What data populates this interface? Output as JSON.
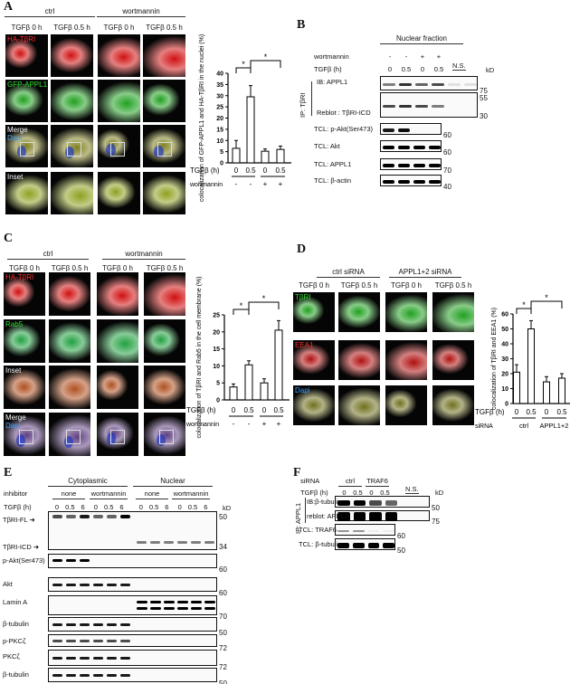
{
  "panels": {
    "A": "A",
    "B": "B",
    "C": "C",
    "D": "D",
    "E": "E",
    "F": "F"
  },
  "panelA": {
    "groups": [
      "ctrl",
      "wortmannin"
    ],
    "columns": [
      "TGFβ 0 h",
      "TGFβ 0.5 h",
      "TGFβ 0 h",
      "TGFβ 0.5 h"
    ],
    "rows": [
      {
        "labels": [
          "HA-TβRI"
        ],
        "label_colors": [
          "#ff3030"
        ],
        "tint": "#d01010"
      },
      {
        "labels": [
          "GFP-APPL1"
        ],
        "label_colors": [
          "#30e030"
        ],
        "tint": "#20a020"
      },
      {
        "labels": [
          "Merge",
          "Dapi"
        ],
        "label_colors": [
          "#ffffff",
          "#3aa0ff"
        ],
        "tint": "#808020"
      },
      {
        "labels": [
          "Inset"
        ],
        "label_colors": [
          "#ffffff"
        ],
        "tint": "#90a020"
      }
    ]
  },
  "panelB": {
    "header": "Nuclear fraction",
    "wortmannin_label": "wortmannin",
    "wortmannin": [
      "-",
      "-",
      "+",
      "+"
    ],
    "tgf_label": "TGFβ (h)",
    "tgf": [
      "0",
      "0.5",
      "0",
      "0.5"
    ],
    "ns": "N.S.",
    "kd": "kD",
    "ip": "IP: TβRI",
    "blots": [
      {
        "label": "IB: APPL1",
        "markers": [
          "75"
        ],
        "lanes": [
          0.5,
          0.8,
          0.6,
          0.7,
          0.1,
          0.1
        ]
      },
      {
        "label": "Reblot  : TβRI-ICD",
        "markers": [
          "55",
          "30"
        ],
        "lanes": [
          0.7,
          0.8,
          0.7,
          0.5,
          0,
          0
        ]
      },
      {
        "label": "TCL: p-Akt(Ser473)",
        "markers": [
          "60"
        ],
        "lanes": [
          0.9,
          0.95,
          0,
          0
        ]
      },
      {
        "label": "TCL: Akt",
        "markers": [
          "60"
        ],
        "lanes": [
          1,
          1,
          1,
          1
        ]
      },
      {
        "label": "TCL: APPL1",
        "markers": [
          "70"
        ],
        "lanes": [
          1,
          1,
          1,
          1
        ]
      },
      {
        "label": "TCL: β-actin",
        "markers": [
          "40"
        ],
        "lanes": [
          1,
          1,
          1,
          1
        ]
      }
    ]
  },
  "panelC": {
    "groups": [
      "ctrl",
      "wortmannin"
    ],
    "columns": [
      "TGFβ 0 h",
      "TGFβ 0.5 h",
      "TGFβ 0 h",
      "TGFβ 0.5 h"
    ],
    "rows": [
      {
        "labels": [
          "HA-TβRI"
        ],
        "label_colors": [
          "#ff3030"
        ],
        "tint": "#d01010"
      },
      {
        "labels": [
          "Rab5"
        ],
        "label_colors": [
          "#30e030"
        ],
        "tint": "#20a040"
      },
      {
        "labels": [
          "Inset"
        ],
        "label_colors": [
          "#ffffff"
        ],
        "tint": "#b05020"
      },
      {
        "labels": [
          "Merge",
          "Dapi"
        ],
        "label_colors": [
          "#ffffff",
          "#3aa0ff"
        ],
        "tint": "#604080"
      }
    ]
  },
  "panelD": {
    "groups": [
      "ctrl siRNA",
      "APPL1+2 siRNA"
    ],
    "columns": [
      "TGFβ 0 h",
      "TGFβ 0.5 h",
      "TGFβ 0 h",
      "TGFβ 0.5 h"
    ],
    "rows": [
      {
        "labels": [
          "TβRI"
        ],
        "label_colors": [
          "#30e030"
        ],
        "tint": "#20a020"
      },
      {
        "labels": [
          "EEA1"
        ],
        "label_colors": [
          "#ff3030"
        ],
        "tint": "#b01010"
      },
      {
        "labels": [
          "Dapi"
        ],
        "label_colors": [
          "#3aa0ff"
        ],
        "tint": "#707020"
      }
    ]
  },
  "panelE": {
    "groups": [
      "Cytoplasmic",
      "Nuclear"
    ],
    "inhibitor_label": "inhibitor",
    "inhibitors": [
      "none",
      "wortmannin",
      "none",
      "wortmannin"
    ],
    "tgf_label": "TGFβ (h)",
    "tgf": [
      "0",
      "0.5",
      "6",
      "0",
      "0.5",
      "6",
      "0",
      "0.5",
      "6",
      "0",
      "0.5",
      "6"
    ],
    "kd": "kD",
    "arrows": [
      "TβRI-FL",
      "TβRI-ICD"
    ],
    "blots": [
      {
        "label": "",
        "markers": [
          "50",
          "34"
        ]
      },
      {
        "label": "p-Akt(Ser473)",
        "markers": [
          "60"
        ]
      },
      {
        "label": "Akt",
        "markers": [
          "60"
        ]
      },
      {
        "label": "Lamin A",
        "markers": [
          "70"
        ]
      },
      {
        "label": "β-tubulin",
        "markers": [
          "50"
        ]
      },
      {
        "label": "p-PKCζ",
        "markers": [
          "72"
        ]
      },
      {
        "label": "PKCζ",
        "markers": [
          "72"
        ]
      },
      {
        "label": "β-tubulin",
        "markers": [
          "50"
        ]
      }
    ]
  },
  "panelF": {
    "sirna_label": "siRNA",
    "sirna": [
      "ctrl",
      "TRAF6"
    ],
    "tgf_label": "TGFβ (h)",
    "tgf": [
      "0",
      "0.5",
      "0",
      "0.5"
    ],
    "ns": "N.S.",
    "kd": "kD",
    "ip": "IP: APPL1",
    "blots": [
      {
        "label": "IB:β-tubulin",
        "markers": [
          "50"
        ],
        "lanes": [
          1,
          1,
          0.7,
          0.6,
          0,
          0
        ]
      },
      {
        "label": "reblot: APPL1",
        "markers": [
          "75"
        ],
        "lanes": [
          1,
          1,
          1,
          1,
          0,
          0
        ]
      },
      {
        "label": "TCL: TRAF6",
        "markers": [
          "60"
        ],
        "lanes": [
          0.4,
          0.4,
          0.05,
          0.05
        ]
      },
      {
        "label": "TCL: β-tubulin",
        "markers": [
          "50"
        ],
        "lanes": [
          1,
          1,
          1,
          1
        ]
      }
    ]
  },
  "chart_data": [
    {
      "type": "bar",
      "ylabel": "colocalization of GFP-APPL1 and HA-TβRI in the nuclei (%)",
      "ylim": [
        0,
        40
      ],
      "yticks": [
        "0",
        "5",
        "10",
        "15",
        "20",
        "25",
        "30",
        "35",
        "40"
      ],
      "values": [
        6.5,
        29.5,
        5.2,
        6
      ],
      "errors": [
        3.5,
        5,
        1,
        1.5
      ],
      "row1_label": "TGFβ (h)",
      "row1": [
        "0",
        "0.5",
        "0",
        "0.5"
      ],
      "row2_label": "wortmannin",
      "row2": [
        "-",
        "-",
        "+",
        "+"
      ],
      "significance": [
        "*",
        "*"
      ]
    },
    {
      "type": "bar",
      "ylabel": "colocalization of TβRI and Rab5 in the cell membrane (%)",
      "ylim": [
        0,
        25
      ],
      "yticks": [
        "0",
        "5",
        "10",
        "15",
        "20",
        "25"
      ],
      "values": [
        3.8,
        10.3,
        5,
        20.5
      ],
      "errors": [
        0.9,
        1.2,
        1.2,
        2.8
      ],
      "row1_label": "TGFβ (h)",
      "row1": [
        "0",
        "0.5",
        "0",
        "0.5"
      ],
      "row2_label": "wortmannin",
      "row2": [
        "-",
        "-",
        "+",
        "+"
      ],
      "significance": [
        "*",
        "*"
      ]
    },
    {
      "type": "bar",
      "ylabel": "colocalization of TβRI and EEA1 (%)",
      "ylim": [
        0,
        60
      ],
      "yticks": [
        "0",
        "10",
        "20",
        "30",
        "40",
        "50",
        "60"
      ],
      "values": [
        21,
        50,
        14.5,
        17
      ],
      "errors": [
        5,
        5.5,
        3.5,
        3
      ],
      "row1_label": "TGFβ (h)",
      "row1": [
        "0",
        "0.5",
        "0",
        "0.5"
      ],
      "row2_label": "siRNA",
      "row2_groups": [
        "ctrl",
        "APPL1+2"
      ],
      "significance": [
        "*",
        "*"
      ]
    }
  ]
}
